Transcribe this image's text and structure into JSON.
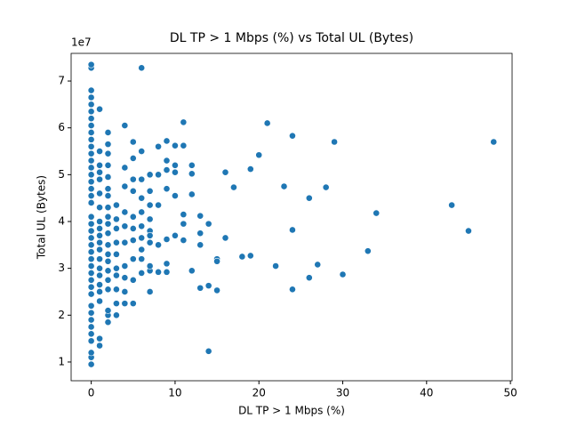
{
  "chart_data": {
    "type": "scatter",
    "title": "DL TP > 1 Mbps (%) vs Total UL (Bytes)",
    "x_label": "DL TP > 1 Mbps (%)",
    "y_label": "Total UL (Bytes)",
    "y_offset_label": "1e7",
    "color": "#1f77b4",
    "xlim": [
      -2.4,
      50.2
    ],
    "xticks": [
      0,
      10,
      20,
      30,
      40,
      50
    ],
    "ylim": [
      0.6,
      7.59
    ],
    "yticks": [
      1,
      2,
      3,
      4,
      5,
      6,
      7
    ],
    "x": [
      0,
      0,
      0,
      0,
      0,
      0,
      0,
      0,
      0,
      0,
      0,
      0,
      0,
      0,
      0,
      0,
      0,
      0,
      0,
      0,
      0,
      0,
      0,
      0,
      0,
      0,
      0,
      0,
      0,
      0,
      0,
      0,
      0,
      0,
      0,
      0,
      0,
      0,
      0,
      0,
      1,
      1,
      1,
      1,
      1,
      1,
      1,
      1,
      1,
      1,
      1,
      1,
      1,
      1,
      1,
      1,
      1,
      1,
      1,
      1,
      2,
      2,
      2,
      2,
      2,
      2,
      2,
      2,
      2,
      2,
      2,
      2,
      2,
      2,
      2,
      2,
      2,
      2,
      2,
      2,
      3,
      3,
      3,
      3,
      3,
      3,
      3,
      3,
      3,
      3,
      4,
      4,
      4,
      4,
      4,
      4,
      4,
      4,
      4,
      4,
      5,
      5,
      5,
      5,
      5,
      5,
      5,
      5,
      5,
      5,
      6,
      6,
      6,
      6,
      6,
      6,
      6,
      6,
      6,
      6,
      7,
      7,
      7,
      7,
      7,
      7,
      7,
      7,
      7,
      7,
      8,
      8,
      8,
      8,
      8,
      9,
      9,
      9,
      9,
      9,
      9,
      9,
      10,
      10,
      10,
      10,
      10,
      11,
      11,
      11,
      11,
      11,
      12,
      12,
      12,
      12,
      13,
      13,
      13,
      13,
      14,
      14,
      14,
      15,
      15,
      15,
      16,
      16,
      17,
      18,
      19,
      19,
      20,
      21,
      22,
      23,
      24,
      24,
      24,
      26,
      26,
      27,
      28,
      29,
      30,
      33,
      34,
      43,
      45,
      48
    ],
    "values": [
      0.95,
      1.1,
      1.2,
      1.45,
      1.6,
      1.75,
      1.9,
      2.05,
      2.2,
      2.45,
      2.6,
      2.75,
      2.9,
      3.05,
      3.2,
      3.35,
      3.5,
      3.65,
      3.8,
      3.95,
      4.1,
      4.4,
      4.55,
      4.7,
      4.85,
      5.0,
      5.15,
      5.3,
      5.45,
      5.6,
      5.75,
      5.9,
      6.05,
      6.2,
      6.35,
      6.5,
      6.65,
      6.8,
      7.28,
      7.35,
      1.35,
      1.5,
      2.3,
      2.5,
      2.65,
      2.85,
      3.0,
      3.2,
      3.4,
      3.55,
      3.7,
      3.85,
      4.0,
      4.3,
      4.6,
      4.9,
      5.05,
      5.2,
      5.5,
      6.4,
      1.85,
      2.0,
      2.1,
      2.55,
      2.75,
      2.95,
      3.15,
      3.3,
      3.5,
      3.75,
      3.95,
      4.1,
      4.3,
      4.55,
      4.7,
      4.95,
      5.2,
      5.45,
      5.65,
      5.9,
      2.0,
      2.25,
      2.55,
      2.85,
      3.0,
      3.3,
      3.55,
      3.85,
      4.05,
      4.35,
      2.25,
      2.5,
      2.8,
      3.05,
      3.55,
      3.9,
      4.2,
      4.75,
      5.15,
      6.05,
      2.25,
      2.75,
      3.2,
      3.6,
      3.85,
      4.1,
      4.65,
      4.9,
      5.35,
      5.7,
      2.9,
      3.2,
      3.65,
      3.9,
      4.2,
      4.5,
      4.9,
      5.5,
      7.28,
      3.4,
      2.5,
      2.95,
      3.05,
      3.55,
      3.8,
      4.05,
      4.35,
      4.65,
      5.0,
      3.7,
      5.6,
      5.0,
      4.35,
      3.5,
      2.92,
      5.72,
      5.3,
      5.1,
      4.7,
      3.62,
      3.1,
      2.92,
      5.62,
      5.2,
      5.05,
      4.55,
      3.7,
      6.12,
      5.62,
      4.15,
      3.95,
      3.6,
      5.2,
      5.02,
      4.58,
      2.95,
      4.12,
      3.75,
      3.5,
      2.58,
      3.95,
      2.63,
      1.23,
      3.2,
      3.15,
      2.53,
      5.05,
      3.65,
      4.73,
      3.25,
      5.12,
      3.27,
      5.42,
      6.1,
      3.05,
      4.75,
      5.83,
      3.82,
      2.55,
      4.5,
      2.8,
      3.08,
      4.73,
      5.7,
      2.87,
      3.37,
      4.18,
      4.35,
      3.8,
      5.7
    ]
  }
}
